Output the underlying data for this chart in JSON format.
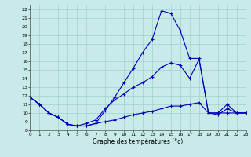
{
  "bg_color": "#c8eae8",
  "grid_color": "#9fcfcc",
  "line_color": "#0000bb",
  "xlabel": "Graphe des températures (°c)",
  "xlim": [
    0,
    23
  ],
  "ylim": [
    8,
    22.5
  ],
  "x_ticks": [
    0,
    1,
    2,
    3,
    4,
    5,
    6,
    7,
    8,
    9,
    10,
    11,
    12,
    13,
    14,
    15,
    16,
    17,
    18,
    19,
    20,
    21,
    22,
    23
  ],
  "y_ticks": [
    8,
    9,
    10,
    11,
    12,
    13,
    14,
    15,
    16,
    17,
    18,
    19,
    20,
    21,
    22
  ],
  "curve1_x": [
    0,
    1,
    2,
    3,
    4,
    5,
    6,
    7,
    8,
    9,
    10,
    11,
    12,
    13,
    14,
    15,
    16,
    17,
    18,
    19,
    20,
    21,
    22,
    23
  ],
  "curve1_y": [
    11.8,
    11.0,
    10.0,
    9.5,
    8.7,
    8.5,
    8.5,
    8.8,
    10.3,
    11.8,
    13.5,
    15.2,
    17.0,
    18.5,
    21.8,
    21.5,
    19.5,
    16.3,
    16.3,
    10.0,
    10.0,
    11.0,
    10.0,
    10.0
  ],
  "curve2_x": [
    0,
    1,
    2,
    3,
    4,
    5,
    6,
    7,
    8,
    9,
    10,
    11,
    12,
    13,
    14,
    15,
    16,
    17,
    18,
    19,
    20,
    21,
    22,
    23
  ],
  "curve2_y": [
    11.8,
    11.0,
    10.0,
    9.5,
    8.7,
    8.5,
    8.8,
    9.2,
    10.5,
    11.5,
    12.2,
    13.0,
    13.5,
    14.2,
    15.3,
    15.8,
    15.5,
    14.0,
    16.2,
    10.0,
    10.0,
    10.0,
    10.0,
    10.0
  ],
  "curve3_x": [
    0,
    1,
    2,
    3,
    4,
    5,
    6,
    7,
    8,
    9,
    10,
    11,
    12,
    13,
    14,
    15,
    16,
    17,
    18,
    19,
    20,
    21,
    22,
    23
  ],
  "curve3_y": [
    11.8,
    11.0,
    10.0,
    9.5,
    8.7,
    8.5,
    8.5,
    8.8,
    9.0,
    9.2,
    9.5,
    9.8,
    10.0,
    10.2,
    10.5,
    10.8,
    10.8,
    11.0,
    11.2,
    10.0,
    9.8,
    10.5,
    10.0,
    10.0
  ]
}
